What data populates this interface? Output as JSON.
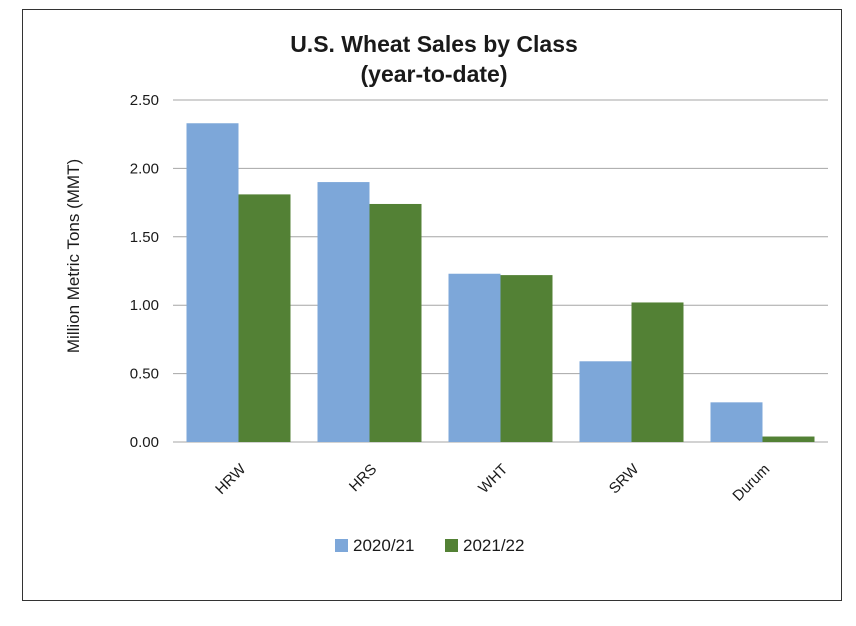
{
  "chart_data": {
    "type": "bar",
    "title": "U.S. Wheat Sales by Class",
    "subtitle": "(year-to-date)",
    "xlabel": "",
    "ylabel": "Million Metric Tons (MMT)",
    "categories": [
      "HRW",
      "HRS",
      "WHT",
      "SRW",
      "Durum"
    ],
    "series": [
      {
        "name": "2020/21",
        "color": "#7da7d9",
        "values": [
          2.33,
          1.9,
          1.23,
          0.59,
          0.29
        ]
      },
      {
        "name": "2021/22",
        "color": "#538135",
        "values": [
          1.81,
          1.74,
          1.22,
          1.02,
          0.04
        ]
      }
    ],
    "ylim": [
      0,
      2.5
    ],
    "yticks": [
      "0.00",
      "0.50",
      "1.00",
      "1.50",
      "2.00",
      "2.50"
    ],
    "grid": true,
    "legend": "bottom"
  }
}
